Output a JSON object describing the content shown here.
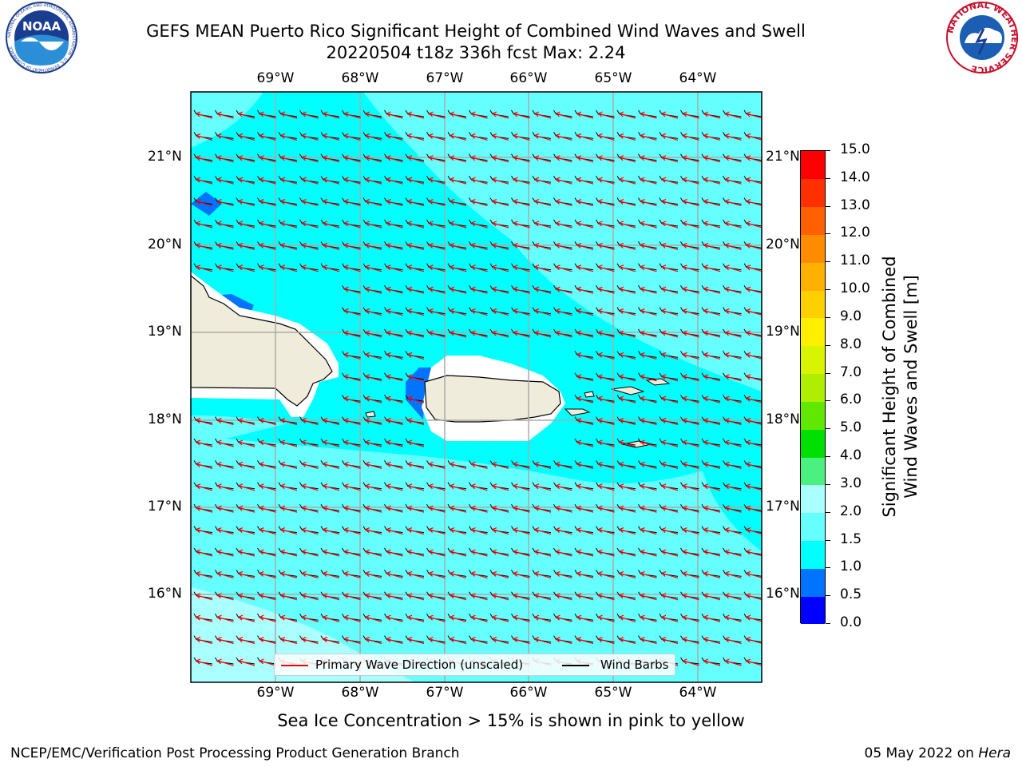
{
  "header": {
    "title_line1": "GEFS MEAN Puerto Rico Significant Height of Combined Wind Waves and Swell",
    "title_line2": "20220504 t18z 336h fcst   Max: 2.24"
  },
  "logos": {
    "noaa_text": "NOAA",
    "noaa_ring": "NATIONAL OCEANIC AND ATMOSPHERIC ADMINISTRATION · U.S. DEPARTMENT OF COMMERCE",
    "nws_ring": "NATIONAL WEATHER SERVICE"
  },
  "map": {
    "lon_labels": [
      "69°W",
      "68°W",
      "67°W",
      "66°W",
      "65°W",
      "64°W"
    ],
    "lat_labels": [
      "21°N",
      "20°N",
      "19°N",
      "18°N",
      "17°N",
      "16°N"
    ],
    "ocean_color": "#00ffff",
    "light_color": "#66ffff",
    "land_color": "#efecdc",
    "wave_arrow_color": "#ff0000",
    "wind_barb_color": "#000000"
  },
  "legend": {
    "wave_label": "Primary Wave Direction (unscaled)",
    "barb_label": "Wind Barbs"
  },
  "colorbar": {
    "label_line1": "Significant Height of Combined",
    "label_line2": "Wind Waves and Swell [m]",
    "ticks": [
      "0.0",
      "0.5",
      "1.0",
      "1.5",
      "2.0",
      "3.0",
      "4.0",
      "5.0",
      "6.0",
      "7.0",
      "8.0",
      "9.0",
      "10.0",
      "11.0",
      "12.0",
      "13.0",
      "14.0",
      "15.0"
    ],
    "colors": [
      "#0000ff",
      "#0073ff",
      "#00ffff",
      "#66ffff",
      "#aaffff",
      "#4cf080",
      "#00e000",
      "#60e800",
      "#b0ee00",
      "#d8f400",
      "#fff000",
      "#ffd000",
      "#ffb000",
      "#ff8c00",
      "#ff6000",
      "#ff3000",
      "#ff0000"
    ]
  },
  "footer": {
    "note": "Sea Ice Concentration > 15% is shown in pink to yellow",
    "credit": "NCEP/EMC/Verification Post Processing Product Generation Branch",
    "date": "05 May 2022 on",
    "host": "Hera"
  }
}
